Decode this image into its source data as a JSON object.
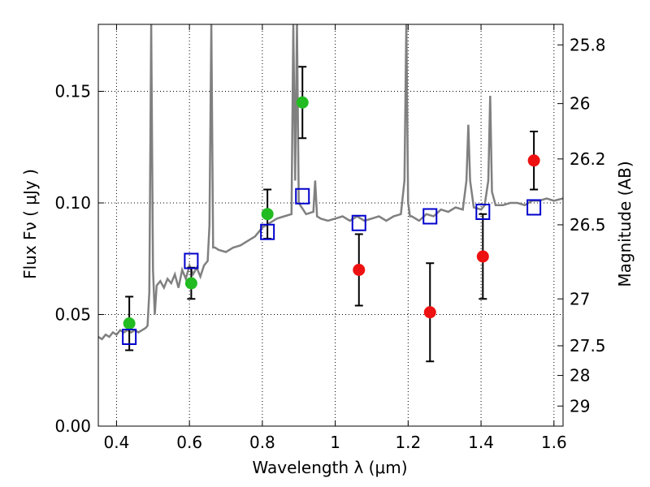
{
  "chart_data": {
    "type": "scatter",
    "xlabel": "Wavelength  λ (μm)",
    "ylabel": "Flux  Fν  ( μJy )",
    "y2label": "Magnitude (AB)",
    "xlim": [
      0.35,
      1.625
    ],
    "ylim": [
      0.0,
      0.18
    ],
    "x_ticks": [
      0.4,
      0.6,
      0.8,
      1.0,
      1.2,
      1.4,
      1.6
    ],
    "x_tick_labels": [
      "0.4",
      "0.6",
      "0.8",
      "1",
      "1.2",
      "1.4",
      "1.6"
    ],
    "y_ticks": [
      0.0,
      0.05,
      0.1,
      0.15
    ],
    "y_tick_labels": [
      "0.00",
      "0.05",
      "0.10",
      "0.15"
    ],
    "y2_ticks": [
      {
        "label": "25.8",
        "flux": 0.1708
      },
      {
        "label": "26",
        "flux": 0.1445
      },
      {
        "label": "26.2",
        "flux": 0.1197
      },
      {
        "label": "26.5",
        "flux": 0.0902
      },
      {
        "label": "27",
        "flux": 0.057
      },
      {
        "label": "27.5",
        "flux": 0.036
      },
      {
        "label": "28",
        "flux": 0.0227
      },
      {
        "label": "29",
        "flux": 0.009
      }
    ],
    "grid": true,
    "colors": {
      "spectrum": "#808080",
      "green": "#22bb22",
      "red": "#ee1111",
      "model": "#0000cc",
      "errorbar": "#000000"
    },
    "series": [
      {
        "type": "line",
        "color": "#808080",
        "x": [
          0.35,
          0.36,
          0.37,
          0.38,
          0.39,
          0.4,
          0.41,
          0.42,
          0.43,
          0.44,
          0.45,
          0.46,
          0.47,
          0.48,
          0.485,
          0.49,
          0.495,
          0.5,
          0.505,
          0.51,
          0.52,
          0.53,
          0.54,
          0.55,
          0.56,
          0.57,
          0.58,
          0.59,
          0.6,
          0.61,
          0.62,
          0.63,
          0.64,
          0.65,
          0.655,
          0.66,
          0.665,
          0.67,
          0.68,
          0.7,
          0.72,
          0.74,
          0.76,
          0.78,
          0.8,
          0.82,
          0.84,
          0.86,
          0.88,
          0.885,
          0.89,
          0.895,
          0.9,
          0.92,
          0.94,
          0.945,
          0.95,
          0.96,
          0.98,
          1.0,
          1.02,
          1.04,
          1.06,
          1.08,
          1.1,
          1.12,
          1.14,
          1.16,
          1.18,
          1.19,
          1.195,
          1.2,
          1.205,
          1.21,
          1.23,
          1.25,
          1.27,
          1.29,
          1.31,
          1.33,
          1.35,
          1.36,
          1.365,
          1.37,
          1.38,
          1.4,
          1.41,
          1.42,
          1.425,
          1.43,
          1.44,
          1.46,
          1.48,
          1.5,
          1.52,
          1.54,
          1.56,
          1.58,
          1.6,
          1.625
        ],
        "y": [
          0.04,
          0.039,
          0.041,
          0.04,
          0.042,
          0.041,
          0.043,
          0.042,
          0.043,
          0.042,
          0.043,
          0.042,
          0.043,
          0.044,
          0.045,
          0.06,
          0.18,
          0.07,
          0.05,
          0.063,
          0.065,
          0.062,
          0.066,
          0.064,
          0.068,
          0.062,
          0.07,
          0.066,
          0.072,
          0.068,
          0.071,
          0.067,
          0.072,
          0.074,
          0.09,
          0.18,
          0.08,
          0.08,
          0.079,
          0.078,
          0.08,
          0.081,
          0.083,
          0.085,
          0.089,
          0.091,
          0.093,
          0.094,
          0.095,
          0.18,
          0.11,
          0.18,
          0.1,
          0.095,
          0.096,
          0.11,
          0.094,
          0.093,
          0.092,
          0.093,
          0.094,
          0.092,
          0.094,
          0.092,
          0.093,
          0.094,
          0.092,
          0.094,
          0.095,
          0.11,
          0.18,
          0.1,
          0.094,
          0.094,
          0.092,
          0.095,
          0.094,
          0.097,
          0.096,
          0.098,
          0.097,
          0.11,
          0.135,
          0.11,
          0.098,
          0.097,
          0.099,
          0.11,
          0.148,
          0.105,
          0.099,
          0.099,
          0.1,
          0.1,
          0.099,
          0.101,
          0.101,
          0.102,
          0.101,
          0.102
        ]
      },
      {
        "type": "scatter",
        "name": "",
        "marker": "circle",
        "color": "#22bb22",
        "x": [
          0.435,
          0.605,
          0.814,
          0.91
        ],
        "y": [
          0.046,
          0.064,
          0.095,
          0.145
        ],
        "yerr": [
          0.012,
          0.007,
          0.011,
          0.016
        ]
      },
      {
        "type": "scatter",
        "name": "",
        "marker": "circle",
        "color": "#ee1111",
        "x": [
          1.065,
          1.26,
          1.405,
          1.545
        ],
        "y": [
          0.07,
          0.051,
          0.076,
          0.119
        ],
        "yerr": [
          0.016,
          0.022,
          0.019,
          0.013
        ]
      },
      {
        "type": "scatter",
        "name": "",
        "marker": "square-open",
        "color": "#0000cc",
        "x": [
          0.435,
          0.605,
          0.814,
          0.91,
          1.065,
          1.26,
          1.405,
          1.545
        ],
        "y": [
          0.04,
          0.074,
          0.087,
          0.103,
          0.091,
          0.094,
          0.096,
          0.098
        ]
      }
    ]
  }
}
